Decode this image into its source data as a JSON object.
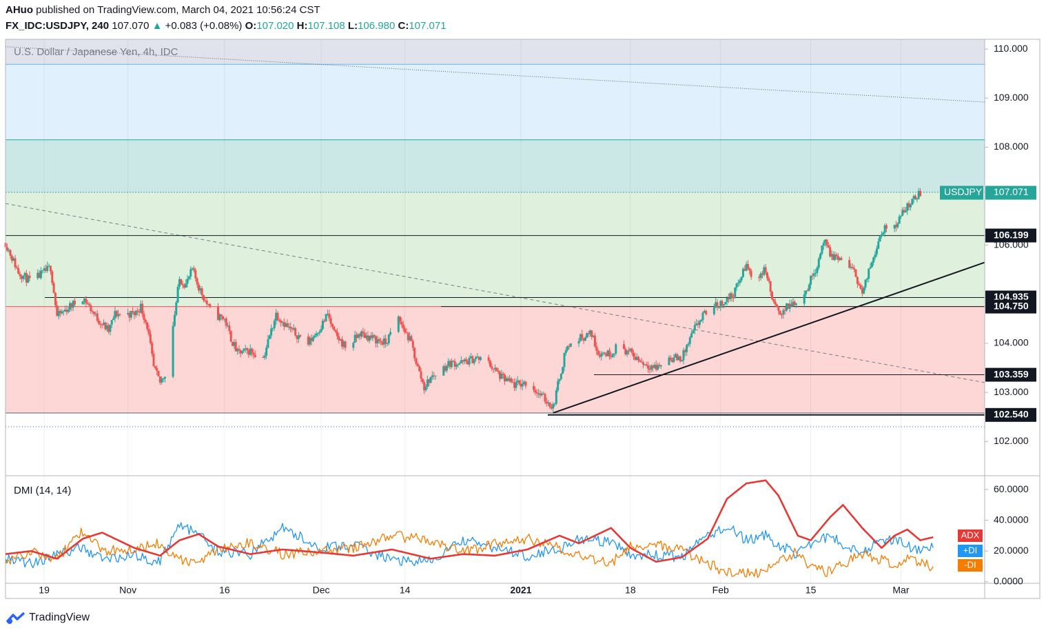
{
  "header": {
    "publisher": "AHuo",
    "published_text": "published on TradingView.com, March 04, 2021 10:56:24 CST",
    "symbol": "FX_IDC:USDJPY, 240",
    "last": "107.070",
    "change": "+0.083 (+0.08%)",
    "o_label": "O:",
    "o": "107.020",
    "h_label": "H:",
    "h": "107.108",
    "l_label": "L:",
    "l": "106.980",
    "c_label": "C:",
    "c": "107.071"
  },
  "brand": {
    "name": "TradingView"
  },
  "colors": {
    "up": "#26a69a",
    "down": "#ef5350",
    "adx": "#e53935",
    "plus_di": "#2196f3",
    "minus_di": "#f57c00",
    "zone_grey": "#e0e3eb",
    "zone_blue": "#e1f0fd",
    "zone_teal": "#cce8e6",
    "zone_green": "#dff0dc",
    "zone_red": "#fcd7d6"
  },
  "chart_data": [
    {
      "type": "candlestick",
      "title": "U.S. Dollar / Japanese Yen, 4h, IDC",
      "ylim": [
        101.3,
        110.2
      ],
      "y_ticks": [
        "110.000",
        "109.000",
        "108.000",
        "106.000",
        "104.000",
        "103.000",
        "102.000"
      ],
      "x_ticks": [
        "19",
        "Nov",
        "16",
        "Dec",
        "14",
        "2021",
        "18",
        "Feb",
        "15",
        "Mar"
      ],
      "x_tick_dates": [
        "2020-10-19",
        "2020-11-01",
        "2020-11-16",
        "2020-12-01",
        "2020-12-14",
        "2021-01-01",
        "2021-01-18",
        "2021-02-01",
        "2021-02-15",
        "2021-03-01"
      ],
      "x_range": [
        "2020-10-13",
        "2021-03-14"
      ],
      "price_label": {
        "name": "USDJPY",
        "value": "107.071"
      },
      "levels": [
        "106.199",
        "104.935",
        "104.750",
        "103.359",
        "102.540"
      ],
      "zones": [
        {
          "from": 109.69,
          "to": 110.2,
          "color": "zone_grey"
        },
        {
          "from": 108.15,
          "to": 109.69,
          "color": "zone_blue"
        },
        {
          "from": 107.08,
          "to": 108.15,
          "color": "zone_teal"
        },
        {
          "from": 104.75,
          "to": 107.08,
          "color": "zone_green"
        },
        {
          "from": 102.58,
          "to": 104.75,
          "color": "zone_red"
        }
      ],
      "waypoints": [
        [
          "2020-10-13",
          106.05
        ],
        [
          "2020-10-15",
          105.45
        ],
        [
          "2020-10-17",
          105.25
        ],
        [
          "2020-10-19",
          105.45
        ],
        [
          "2020-10-20",
          105.55
        ],
        [
          "2020-10-21",
          104.55
        ],
        [
          "2020-10-23",
          104.75
        ],
        [
          "2020-10-25",
          104.95
        ],
        [
          "2020-10-27",
          104.55
        ],
        [
          "2020-10-29",
          104.25
        ],
        [
          "2020-10-30",
          104.6
        ],
        [
          "2020-11-02",
          104.6
        ],
        [
          "2020-11-03",
          104.75
        ],
        [
          "2020-11-04",
          104.35
        ],
        [
          "2020-11-05",
          103.5
        ],
        [
          "2020-11-06",
          103.2
        ],
        [
          "2020-11-07",
          103.45
        ],
        [
          "2020-11-09",
          105.3
        ],
        [
          "2020-11-10",
          105.2
        ],
        [
          "2020-11-11",
          105.5
        ],
        [
          "2020-11-12",
          105.15
        ],
        [
          "2020-11-14",
          104.6
        ],
        [
          "2020-11-16",
          104.5
        ],
        [
          "2020-11-17",
          104.1
        ],
        [
          "2020-11-18",
          103.8
        ],
        [
          "2020-11-20",
          103.85
        ],
        [
          "2020-11-22",
          103.7
        ],
        [
          "2020-11-24",
          104.6
        ],
        [
          "2020-11-26",
          104.3
        ],
        [
          "2020-11-29",
          104.0
        ],
        [
          "2020-12-01",
          104.35
        ],
        [
          "2020-12-02",
          104.6
        ],
        [
          "2020-12-03",
          104.2
        ],
        [
          "2020-12-05",
          103.9
        ],
        [
          "2020-12-07",
          104.2
        ],
        [
          "2020-12-09",
          104.1
        ],
        [
          "2020-12-11",
          104.0
        ],
        [
          "2020-12-13",
          104.5
        ],
        [
          "2020-12-15",
          104.0
        ],
        [
          "2020-12-16",
          103.5
        ],
        [
          "2020-12-17",
          103.1
        ],
        [
          "2020-12-18",
          103.3
        ],
        [
          "2020-12-21",
          103.6
        ],
        [
          "2020-12-23",
          103.6
        ],
        [
          "2020-12-25",
          103.7
        ],
        [
          "2020-12-27",
          103.6
        ],
        [
          "2020-12-29",
          103.3
        ],
        [
          "2020-12-31",
          103.15
        ],
        [
          "2021-01-02",
          103.2
        ],
        [
          "2021-01-04",
          102.95
        ],
        [
          "2021-01-06",
          102.7
        ],
        [
          "2021-01-08",
          103.9
        ],
        [
          "2021-01-10",
          104.1
        ],
        [
          "2021-01-12",
          104.2
        ],
        [
          "2021-01-13",
          103.8
        ],
        [
          "2021-01-15",
          103.8
        ],
        [
          "2021-01-16",
          103.95
        ],
        [
          "2021-01-18",
          103.8
        ],
        [
          "2021-01-20",
          103.6
        ],
        [
          "2021-01-22",
          103.5
        ],
        [
          "2021-01-24",
          103.7
        ],
        [
          "2021-01-26",
          103.7
        ],
        [
          "2021-01-28",
          104.3
        ],
        [
          "2021-01-30",
          104.7
        ],
        [
          "2021-02-01",
          104.8
        ],
        [
          "2021-02-03",
          105.0
        ],
        [
          "2021-02-05",
          105.6
        ],
        [
          "2021-02-06",
          105.3
        ],
        [
          "2021-02-08",
          105.5
        ],
        [
          "2021-02-09",
          104.9
        ],
        [
          "2021-02-10",
          104.6
        ],
        [
          "2021-02-12",
          104.8
        ],
        [
          "2021-02-14",
          105.0
        ],
        [
          "2021-02-16",
          105.6
        ],
        [
          "2021-02-17",
          106.1
        ],
        [
          "2021-02-18",
          105.8
        ],
        [
          "2021-02-20",
          105.7
        ],
        [
          "2021-02-22",
          105.4
        ],
        [
          "2021-02-23",
          105.0
        ],
        [
          "2021-02-25",
          105.9
        ],
        [
          "2021-02-26",
          106.3
        ],
        [
          "2021-02-28",
          106.4
        ],
        [
          "2021-03-02",
          106.8
        ],
        [
          "2021-03-04",
          107.07
        ]
      ]
    },
    {
      "type": "line",
      "title": "DMI (14, 14)",
      "ylim": [
        -1,
        69
      ],
      "y_ticks": [
        "60.0000",
        "40.0000",
        "20.0000",
        "0.0000"
      ],
      "series": [
        {
          "name": "ADX",
          "last": "28.9",
          "points": [
            [
              "2020-10-13",
              18
            ],
            [
              "2020-10-17",
              20
            ],
            [
              "2020-10-21",
              15
            ],
            [
              "2020-10-25",
              28
            ],
            [
              "2020-10-28",
              32
            ],
            [
              "2020-11-02",
              22
            ],
            [
              "2020-11-06",
              17
            ],
            [
              "2020-11-09",
              27
            ],
            [
              "2020-11-12",
              31
            ],
            [
              "2020-11-15",
              23
            ],
            [
              "2020-11-20",
              18
            ],
            [
              "2020-11-25",
              21
            ],
            [
              "2020-12-01",
              19
            ],
            [
              "2020-12-06",
              17
            ],
            [
              "2020-12-12",
              21
            ],
            [
              "2020-12-18",
              15
            ],
            [
              "2020-12-23",
              18
            ],
            [
              "2020-12-28",
              17
            ],
            [
              "2021-01-02",
              21
            ],
            [
              "2021-01-07",
              30
            ],
            [
              "2021-01-10",
              25
            ],
            [
              "2021-01-15",
              35
            ],
            [
              "2021-01-18",
              22
            ],
            [
              "2021-01-22",
              13
            ],
            [
              "2021-01-26",
              16
            ],
            [
              "2021-01-30",
              28
            ],
            [
              "2021-02-02",
              54
            ],
            [
              "2021-02-05",
              64
            ],
            [
              "2021-02-08",
              66
            ],
            [
              "2021-02-10",
              56
            ],
            [
              "2021-02-13",
              30
            ],
            [
              "2021-02-15",
              27
            ],
            [
              "2021-02-18",
              42
            ],
            [
              "2021-02-20",
              50
            ],
            [
              "2021-02-23",
              35
            ],
            [
              "2021-02-26",
              22
            ],
            [
              "2021-02-28",
              30
            ],
            [
              "2021-03-02",
              34
            ],
            [
              "2021-03-04",
              27
            ],
            [
              "2021-03-06",
              29
            ]
          ]
        },
        {
          "name": "+DI",
          "last": "22.1",
          "points": [
            [
              "2020-10-13",
              16
            ],
            [
              "2020-10-17",
              12
            ],
            [
              "2020-10-21",
              18
            ],
            [
              "2020-10-25",
              22
            ],
            [
              "2020-10-28",
              15
            ],
            [
              "2020-11-02",
              17
            ],
            [
              "2020-11-06",
              13
            ],
            [
              "2020-11-09",
              38
            ],
            [
              "2020-11-12",
              30
            ],
            [
              "2020-11-15",
              20
            ],
            [
              "2020-11-20",
              18
            ],
            [
              "2020-11-25",
              35
            ],
            [
              "2020-12-01",
              22
            ],
            [
              "2020-12-06",
              24
            ],
            [
              "2020-12-12",
              14
            ],
            [
              "2020-12-18",
              13
            ],
            [
              "2020-12-23",
              27
            ],
            [
              "2020-12-28",
              22
            ],
            [
              "2021-01-02",
              17
            ],
            [
              "2021-01-07",
              22
            ],
            [
              "2021-01-10",
              28
            ],
            [
              "2021-01-15",
              25
            ],
            [
              "2021-01-18",
              18
            ],
            [
              "2021-01-22",
              17
            ],
            [
              "2021-01-26",
              16
            ],
            [
              "2021-01-30",
              30
            ],
            [
              "2021-02-02",
              36
            ],
            [
              "2021-02-05",
              27
            ],
            [
              "2021-02-08",
              30
            ],
            [
              "2021-02-10",
              24
            ],
            [
              "2021-02-13",
              18
            ],
            [
              "2021-02-15",
              25
            ],
            [
              "2021-02-18",
              30
            ],
            [
              "2021-02-20",
              24
            ],
            [
              "2021-02-23",
              20
            ],
            [
              "2021-02-26",
              26
            ],
            [
              "2021-02-28",
              28
            ],
            [
              "2021-03-02",
              24
            ],
            [
              "2021-03-04",
              19
            ],
            [
              "2021-03-06",
              22
            ]
          ]
        },
        {
          "name": "-DI",
          "last": "9.9",
          "points": [
            [
              "2020-10-13",
              13
            ],
            [
              "2020-10-17",
              20
            ],
            [
              "2020-10-21",
              15
            ],
            [
              "2020-10-25",
              33
            ],
            [
              "2020-10-28",
              20
            ],
            [
              "2020-11-02",
              22
            ],
            [
              "2020-11-06",
              25
            ],
            [
              "2020-11-09",
              14
            ],
            [
              "2020-11-12",
              12
            ],
            [
              "2020-11-15",
              22
            ],
            [
              "2020-11-20",
              25
            ],
            [
              "2020-11-25",
              18
            ],
            [
              "2020-12-01",
              20
            ],
            [
              "2020-12-06",
              22
            ],
            [
              "2020-12-12",
              30
            ],
            [
              "2020-12-18",
              27
            ],
            [
              "2020-12-23",
              19
            ],
            [
              "2020-12-28",
              25
            ],
            [
              "2021-01-02",
              28
            ],
            [
              "2021-01-07",
              22
            ],
            [
              "2021-01-10",
              17
            ],
            [
              "2021-01-15",
              12
            ],
            [
              "2021-01-18",
              23
            ],
            [
              "2021-01-22",
              25
            ],
            [
              "2021-01-26",
              20
            ],
            [
              "2021-01-30",
              12
            ],
            [
              "2021-02-02",
              6
            ],
            [
              "2021-02-05",
              5
            ],
            [
              "2021-02-08",
              6
            ],
            [
              "2021-02-10",
              15
            ],
            [
              "2021-02-13",
              19
            ],
            [
              "2021-02-15",
              10
            ],
            [
              "2021-02-18",
              6
            ],
            [
              "2021-02-20",
              12
            ],
            [
              "2021-02-23",
              18
            ],
            [
              "2021-02-26",
              14
            ],
            [
              "2021-02-28",
              11
            ],
            [
              "2021-03-02",
              14
            ],
            [
              "2021-03-04",
              12
            ],
            [
              "2021-03-06",
              10
            ]
          ]
        }
      ]
    }
  ]
}
